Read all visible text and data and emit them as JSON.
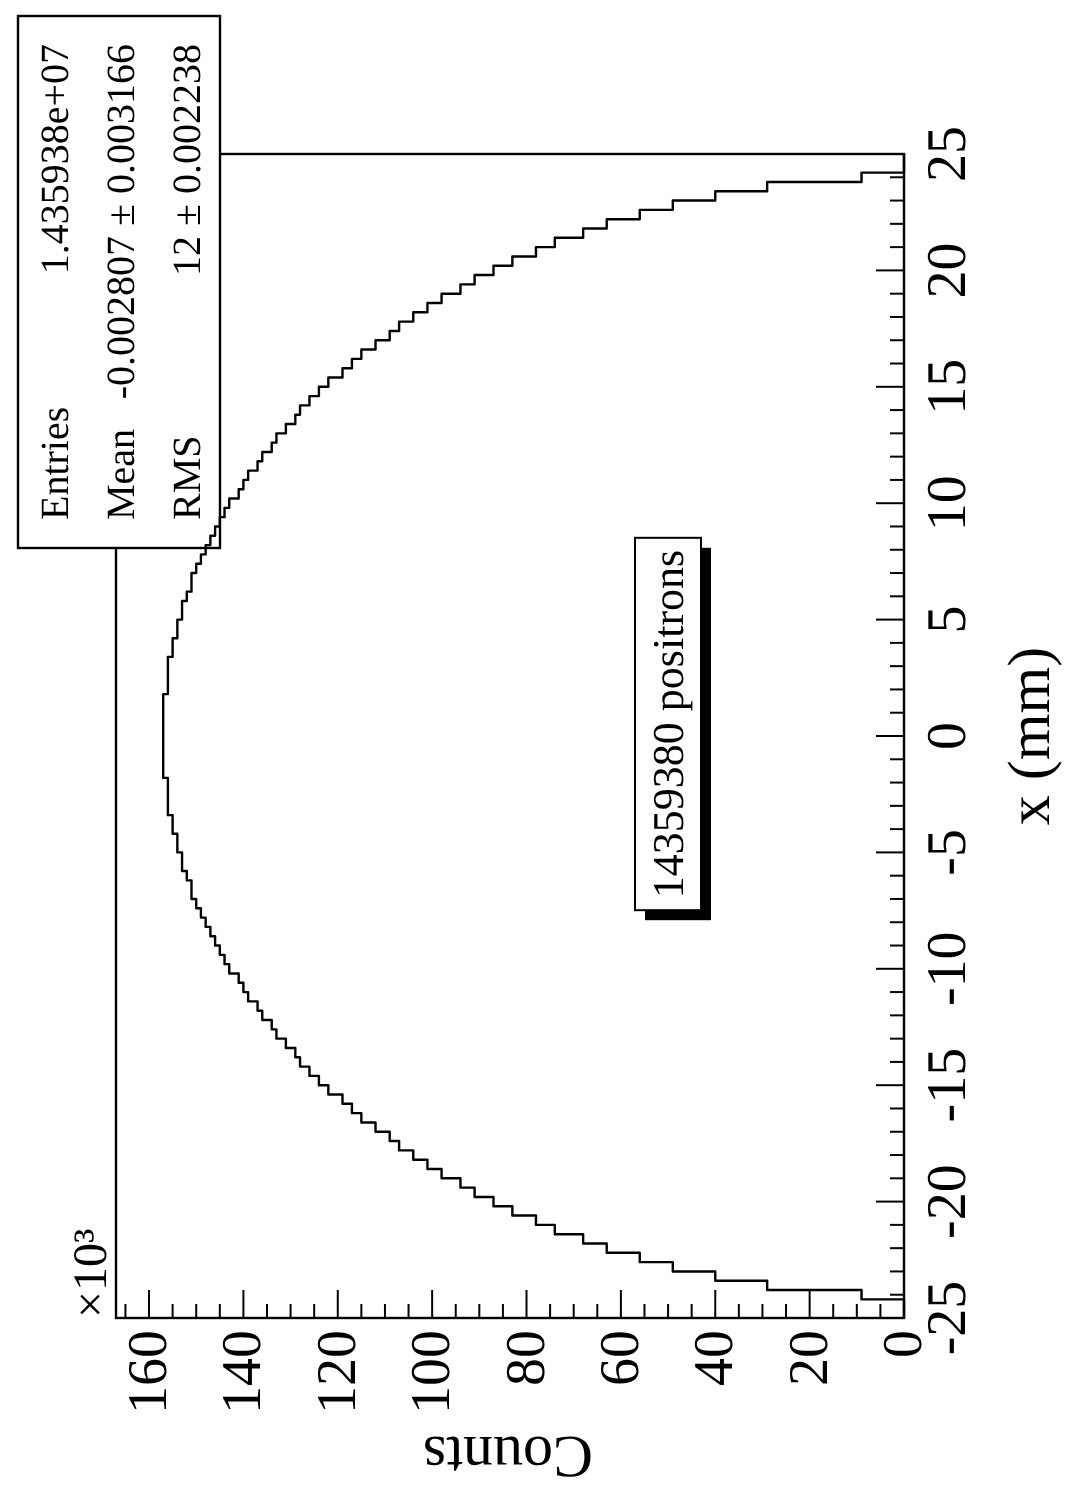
{
  "chart_data": {
    "type": "histogram",
    "orientation": "horizontal",
    "xlabel": "Counts",
    "ylabel": "x (mm)",
    "color": "#000000",
    "bins": [
      -25,
      -24.6,
      -24.2,
      -23.8,
      -23.4,
      -23,
      -22.6,
      -22.2,
      -21.8,
      -21.4,
      -21,
      -20.6,
      -20.2,
      -19.8,
      -19.4,
      -19,
      -18.6,
      -18.2,
      -17.8,
      -17.4,
      -17,
      -16.6,
      -16.2,
      -15.8,
      -15.4,
      -15,
      -14.6,
      -14.2,
      -13.8,
      -13.4,
      -13,
      -12.6,
      -12.2,
      -11.8,
      -11.4,
      -11,
      -10.6,
      -10.2,
      -9.8,
      -9.4,
      -9,
      -8.6,
      -8.2,
      -7.8,
      -7.4,
      -7,
      -6.6,
      -6.2,
      -5.8,
      -5.4,
      -5,
      -4.6,
      -4.2,
      -3.8,
      -3.4,
      -3,
      -2.6,
      -2.2,
      -1.8,
      -1.4,
      -1,
      -0.6,
      -0.2,
      0.2,
      0.6,
      1,
      1.4,
      1.8,
      2.2,
      2.6,
      3,
      3.4,
      3.8,
      4.2,
      4.6,
      5,
      5.4,
      5.8,
      6.2,
      6.6,
      7,
      7.4,
      7.8,
      8.2,
      8.6,
      9,
      9.4,
      9.8,
      10.2,
      10.6,
      11,
      11.4,
      11.8,
      12.2,
      12.6,
      13,
      13.4,
      13.8,
      14.2,
      14.6,
      15,
      15.4,
      15.8,
      16.2,
      16.6,
      17,
      17.4,
      17.8,
      18.2,
      18.6,
      19,
      19.4,
      19.8,
      20.2,
      20.6,
      21,
      21.4,
      21.8,
      22.2,
      22.6,
      23,
      23.4,
      23.8,
      24.2,
      24.6,
      25
    ],
    "values": [
      0,
      0,
      9,
      29,
      40,
      49,
      56,
      63,
      68,
      74,
      78,
      83,
      87,
      91,
      94,
      98,
      101,
      104,
      107,
      109,
      112,
      115,
      117,
      119,
      122,
      124,
      126,
      128,
      129,
      131,
      133,
      134,
      136,
      137,
      139,
      140,
      141,
      143,
      144,
      145,
      146,
      147,
      148,
      149,
      150,
      151,
      151,
      152,
      153,
      153,
      154,
      154,
      155,
      155,
      156,
      156,
      156,
      156,
      157,
      157,
      157,
      157,
      157,
      157,
      157,
      157,
      157,
      156,
      156,
      156,
      156,
      155,
      155,
      154,
      154,
      153,
      153,
      152,
      151,
      151,
      150,
      149,
      148,
      147,
      146,
      145,
      144,
      143,
      141,
      140,
      139,
      137,
      136,
      134,
      133,
      131,
      129,
      128,
      126,
      124,
      122,
      119,
      117,
      115,
      112,
      109,
      107,
      104,
      101,
      98,
      94,
      91,
      87,
      83,
      78,
      74,
      68,
      63,
      56,
      49,
      40,
      29,
      9,
      0,
      0
    ],
    "ylim": [
      -25,
      25
    ],
    "yticks": [
      -25,
      -20,
      -15,
      -10,
      -5,
      0,
      5,
      10,
      15,
      20,
      25,
      {
        "value": -24,
        "label": null
      },
      {
        "value": -23,
        "label": null
      },
      {
        "value": -22,
        "label": null
      },
      {
        "value": -21,
        "label": null
      },
      {
        "value": -19,
        "label": null
      },
      {
        "value": -18,
        "label": null
      },
      {
        "value": -17,
        "label": null
      },
      {
        "value": -16,
        "label": null
      },
      {
        "value": -14,
        "label": null
      },
      {
        "value": -13,
        "label": null
      },
      {
        "value": -12,
        "label": null
      },
      {
        "value": -11,
        "label": null
      },
      {
        "value": -9,
        "label": null
      },
      {
        "value": -8,
        "label": null
      },
      {
        "value": -7,
        "label": null
      },
      {
        "value": -6,
        "label": null
      },
      {
        "value": -4,
        "label": null
      },
      {
        "value": -3,
        "label": null
      },
      {
        "value": -2,
        "label": null
      },
      {
        "value": -1,
        "label": null
      },
      {
        "value": 1,
        "label": null
      },
      {
        "value": 2,
        "label": null
      },
      {
        "value": 3,
        "label": null
      },
      {
        "value": 4,
        "label": null
      },
      {
        "value": 6,
        "label": null
      },
      {
        "value": 7,
        "label": null
      },
      {
        "value": 8,
        "label": null
      },
      {
        "value": 9,
        "label": null
      },
      {
        "value": 11,
        "label": null
      },
      {
        "value": 12,
        "label": null
      },
      {
        "value": 13,
        "label": null
      },
      {
        "value": 14,
        "label": null
      },
      {
        "value": 16,
        "label": null
      },
      {
        "value": 17,
        "label": null
      },
      {
        "value": 18,
        "label": null
      },
      {
        "value": 19,
        "label": null
      },
      {
        "value": 21,
        "label": null
      },
      {
        "value": 22,
        "label": null
      },
      {
        "value": 23,
        "label": null
      },
      {
        "value": 24,
        "label": null
      }
    ],
    "xlim": [
      167,
      0
    ],
    "xticks": [
      0,
      20,
      40,
      60,
      80,
      100,
      120,
      140,
      160,
      {
        "value": 5,
        "label": null
      },
      {
        "value": 10,
        "label": null
      },
      {
        "value": 15,
        "label": null
      },
      {
        "value": 25,
        "label": null
      },
      {
        "value": 30,
        "label": null
      },
      {
        "value": 35,
        "label": null
      },
      {
        "value": 45,
        "label": null
      },
      {
        "value": 50,
        "label": null
      },
      {
        "value": 55,
        "label": null
      },
      {
        "value": 65,
        "label": null
      },
      {
        "value": 70,
        "label": null
      },
      {
        "value": 75,
        "label": null
      },
      {
        "value": 85,
        "label": null
      },
      {
        "value": 90,
        "label": null
      },
      {
        "value": 95,
        "label": null
      },
      {
        "value": 105,
        "label": null
      },
      {
        "value": 110,
        "label": null
      },
      {
        "value": 115,
        "label": null
      },
      {
        "value": 125,
        "label": null
      },
      {
        "value": 130,
        "label": null
      },
      {
        "value": 135,
        "label": null
      },
      {
        "value": 145,
        "label": null
      },
      {
        "value": 150,
        "label": null
      },
      {
        "value": 155,
        "label": null
      },
      {
        "value": 165,
        "label": null
      }
    ],
    "annotations": [
      "×10³",
      "Entries",
      "1.435938e+07",
      "Mean",
      "-0.002807 ± 0.003166",
      "RMS",
      "12 ± 0.002238",
      "14359380 positrons"
    ]
  }
}
